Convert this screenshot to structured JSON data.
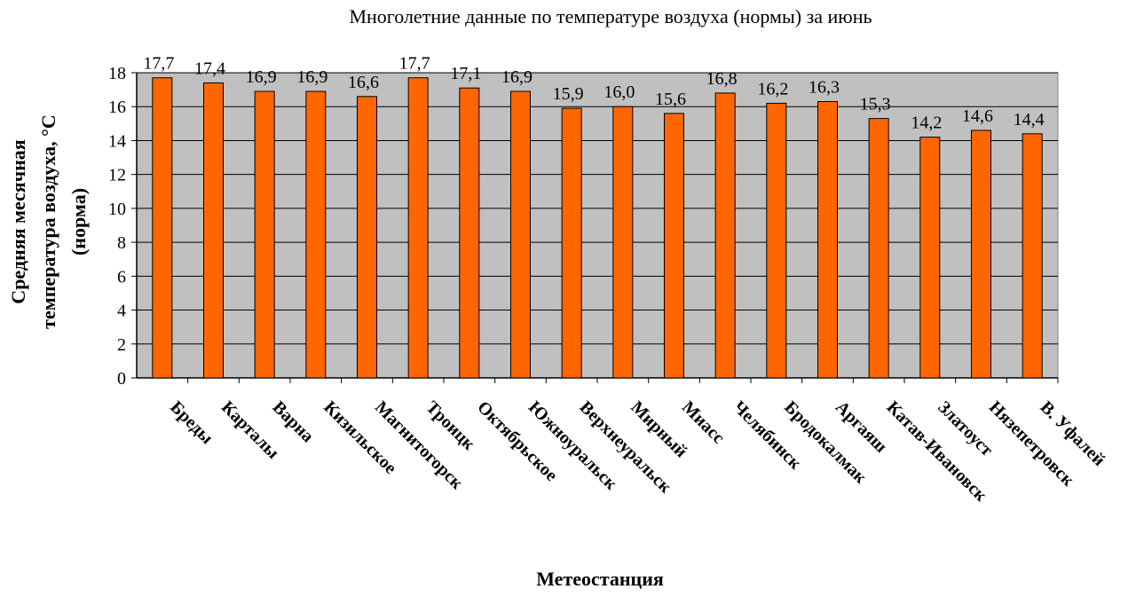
{
  "chart_data": {
    "type": "bar",
    "title": "Многолетние данные по температуре воздуха (нормы) за июнь",
    "xlabel": "Метеостанция",
    "ylabel": "Средняя месячная температура воздуха, °С (норма)",
    "ylabel_lines": [
      "Средняя месячная",
      "температура воздуха, °С",
      "(норма)"
    ],
    "categories": [
      "Бреды",
      "Карталы",
      "Варна",
      "Кизильское",
      "Магнитогорск",
      "Троицк",
      "Октябрьское",
      "Южноуральск",
      "Верхнеуральск",
      "Мирный",
      "Миасс",
      "Челябинск",
      "Бродокалмак",
      "Аргаяш",
      "Катав-Ивановск",
      "Златоуст",
      "Нязепетровск",
      "В. Уфалей"
    ],
    "values": [
      17.7,
      17.4,
      16.9,
      16.9,
      16.6,
      17.7,
      17.1,
      16.9,
      15.9,
      16.0,
      15.6,
      16.8,
      16.2,
      16.3,
      15.3,
      14.2,
      14.6,
      14.4
    ],
    "value_labels": [
      "17,7",
      "17,4",
      "16,9",
      "16,9",
      "16,6",
      "17,7",
      "17,1",
      "16,9",
      "15,9",
      "16,0",
      "15,6",
      "16,8",
      "16,2",
      "16,3",
      "15,3",
      "14,2",
      "14,6",
      "14,4"
    ],
    "ylim": [
      0,
      18
    ],
    "yticks": [
      0,
      2,
      4,
      6,
      8,
      10,
      12,
      14,
      16,
      18
    ],
    "grid": true,
    "legend": "none",
    "colors": {
      "bar": "#ff6600",
      "plot_bg": "#c0c0c0",
      "grid": "#000000",
      "bar_edge": "#000000"
    }
  }
}
